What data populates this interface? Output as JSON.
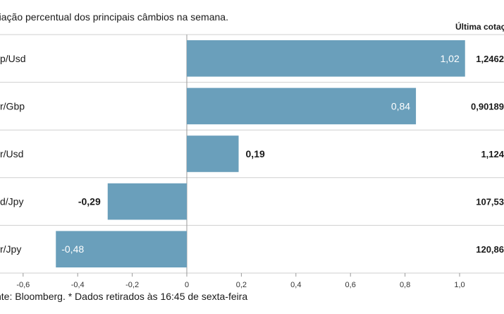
{
  "subtitle": "riação percentual dos principais câmbios na semana.",
  "column_header": "Última cotação*",
  "source": "nte: Bloomberg.  * Dados retirados às 16:45 de sexta-feira",
  "colors": {
    "bar": "#6a9fbb",
    "grid": "#cfcfcf",
    "axis": "#9a9a9a"
  },
  "chart_data": {
    "type": "bar",
    "orientation": "horizontal",
    "categories": [
      "p/Usd",
      "r/Gbp",
      "r/Usd",
      "d/Jpy",
      "r/Jpy"
    ],
    "values": [
      1.02,
      0.84,
      0.19,
      -0.29,
      -0.48
    ],
    "value_labels": [
      "1,02",
      "0,84",
      "0,19",
      "-0,29",
      "-0,48"
    ],
    "quotes": [
      "1,2462",
      "0,90189",
      "1,124",
      "107,53",
      "120,86"
    ],
    "xlim": [
      -0.6,
      1.0
    ],
    "xticks": [
      -0.6,
      -0.4,
      -0.2,
      0,
      0.2,
      0.4,
      0.6,
      0.8,
      1.0
    ],
    "xtick_labels": [
      "-0,6",
      "-0,4",
      "-0,2",
      "0",
      "0,2",
      "0,4",
      "0,6",
      "0,8",
      "1,0"
    ]
  }
}
